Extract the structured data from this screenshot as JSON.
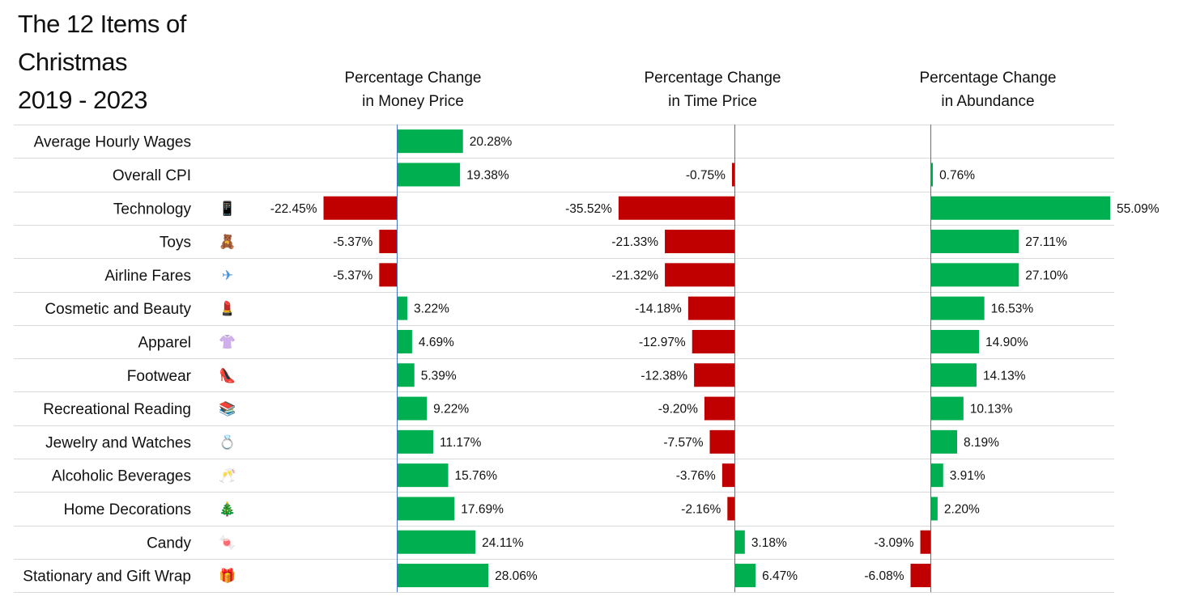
{
  "title_lines": [
    "The 12 Items of",
    "Christmas",
    "2019 - 2023"
  ],
  "panels": [
    {
      "title_lines": [
        "Percentage Change",
        "in Money Price"
      ]
    },
    {
      "title_lines": [
        "Percentage Change",
        "in Time Price"
      ]
    },
    {
      "title_lines": [
        "Percentage Change",
        "in Abundance"
      ]
    }
  ],
  "colors": {
    "positive": "#00b050",
    "negative": "#c00000",
    "zero_line": "#4472c4",
    "row_divider": "#d9d9d9"
  },
  "chart_data": {
    "type": "bar",
    "orientation": "horizontal",
    "title": "The 12 Items of Christmas 2019 - 2023",
    "categories": [
      "Average Hourly Wages",
      "Overall CPI",
      "Technology",
      "Toys",
      "Airline Fares",
      "Cosmetic and Beauty",
      "Apparel",
      "Footwear",
      "Recreational Reading",
      "Jewelry and Watches",
      "Alcoholic Beverages",
      "Home Decorations",
      "Candy",
      "Stationary and Gift Wrap"
    ],
    "icons": [
      null,
      null,
      "mobile-phone-icon",
      "teddy-bear-icon",
      "airplane-icon",
      "lipstick-icon",
      "shirt-icon",
      "high-heel-icon",
      "books-icon",
      "ring-icon",
      "champagne-icon",
      "christmas-tree-icon",
      "candy-icon",
      "gift-icon"
    ],
    "series": [
      {
        "name": "Percentage Change in Money Price",
        "values": [
          20.28,
          19.38,
          -22.45,
          -5.37,
          -5.37,
          3.22,
          4.69,
          5.39,
          9.22,
          11.17,
          15.76,
          17.69,
          24.11,
          28.06
        ],
        "labels": [
          "20.28%",
          "19.38%",
          "-22.45%",
          "-5.37%",
          "-5.37%",
          "3.22%",
          "4.69%",
          "5.39%",
          "9.22%",
          "11.17%",
          "15.76%",
          "17.69%",
          "24.11%",
          "28.06%"
        ]
      },
      {
        "name": "Percentage Change in Time Price",
        "values": [
          null,
          -0.75,
          -35.52,
          -21.33,
          -21.32,
          -14.18,
          -12.97,
          -12.38,
          -9.2,
          -7.57,
          -3.76,
          -2.16,
          3.18,
          6.47
        ],
        "labels": [
          null,
          "-0.75%",
          "-35.52%",
          "-21.33%",
          "-21.32%",
          "-14.18%",
          "-12.97%",
          "-12.38%",
          "-9.20%",
          "-7.57%",
          "-3.76%",
          "-2.16%",
          "3.18%",
          "6.47%"
        ]
      },
      {
        "name": "Percentage Change in Abundance",
        "values": [
          null,
          0.76,
          55.09,
          27.11,
          27.1,
          16.53,
          14.9,
          14.13,
          10.13,
          8.19,
          3.91,
          2.2,
          -3.09,
          -6.08
        ],
        "labels": [
          null,
          "0.76%",
          "55.09%",
          "27.11%",
          "27.10%",
          "16.53%",
          "14.90%",
          "14.13%",
          "10.13%",
          "8.19%",
          "3.91%",
          "2.20%",
          "-3.09%",
          "-6.08%"
        ]
      }
    ],
    "grid": false,
    "legend": "none"
  }
}
